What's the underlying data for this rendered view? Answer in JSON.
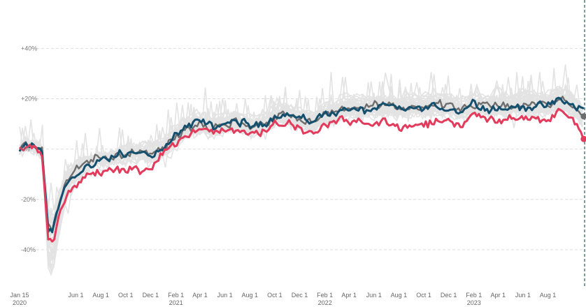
{
  "chart_data": {
    "type": "line",
    "title": "",
    "xlabel": "",
    "ylabel": "",
    "y_unit": "percent change",
    "ylim": [
      -55,
      57
    ],
    "grid": "horizontal dashed",
    "x_domain": [
      "2020-01-15",
      "2023-10-30"
    ],
    "xticks": [
      {
        "date": "2020-01-15",
        "label": "Jan 15",
        "sub": "2020"
      },
      {
        "date": "2020-06-01",
        "label": "Jun 1",
        "sub": ""
      },
      {
        "date": "2020-08-01",
        "label": "Aug 1",
        "sub": ""
      },
      {
        "date": "2020-10-01",
        "label": "Oct 1",
        "sub": ""
      },
      {
        "date": "2020-12-01",
        "label": "Dec 1",
        "sub": ""
      },
      {
        "date": "2021-02-01",
        "label": "Feb 1",
        "sub": "2021"
      },
      {
        "date": "2021-04-01",
        "label": "Apr 1",
        "sub": ""
      },
      {
        "date": "2021-06-01",
        "label": "Jun 1",
        "sub": ""
      },
      {
        "date": "2021-08-01",
        "label": "Aug 1",
        "sub": ""
      },
      {
        "date": "2021-10-01",
        "label": "Oct 1",
        "sub": ""
      },
      {
        "date": "2021-12-01",
        "label": "Dec 1",
        "sub": ""
      },
      {
        "date": "2022-02-01",
        "label": "Feb 1",
        "sub": "2022"
      },
      {
        "date": "2022-04-01",
        "label": "Apr 1",
        "sub": ""
      },
      {
        "date": "2022-06-01",
        "label": "Jun 1",
        "sub": ""
      },
      {
        "date": "2022-08-01",
        "label": "Aug 1",
        "sub": ""
      },
      {
        "date": "2022-10-01",
        "label": "Oct 1",
        "sub": ""
      },
      {
        "date": "2022-12-01",
        "label": "Dec 1",
        "sub": ""
      },
      {
        "date": "2023-02-01",
        "label": "Feb 1",
        "sub": "2023"
      },
      {
        "date": "2023-04-01",
        "label": "Apr 1",
        "sub": ""
      },
      {
        "date": "2023-06-01",
        "label": "Jun 1",
        "sub": ""
      },
      {
        "date": "2023-08-01",
        "label": "Aug 1",
        "sub": ""
      }
    ],
    "yticks": [
      {
        "value": 40,
        "label": "+40%"
      },
      {
        "value": 20,
        "label": "+20%"
      },
      {
        "value": 0,
        "label": "0%"
      },
      {
        "value": -20,
        "label": "-20%"
      },
      {
        "value": -40,
        "label": "-40%"
      }
    ],
    "marker_line_date": "2023-10-30",
    "colors": {
      "background_series": "#e3e3e3",
      "gray_series": "#6e6e6e",
      "blue_series": "#14506e",
      "red_series": "#e23b5c",
      "grid": "#dddddd",
      "marker_line": "#3a6470"
    },
    "series": [
      {
        "role": "gray",
        "points": [
          [
            "2020-01-15",
            0
          ],
          [
            "2020-02-01",
            2
          ],
          [
            "2020-02-20",
            1
          ],
          [
            "2020-03-10",
            0
          ],
          [
            "2020-03-25",
            -30
          ],
          [
            "2020-04-05",
            -33
          ],
          [
            "2020-04-20",
            -22
          ],
          [
            "2020-05-10",
            -12
          ],
          [
            "2020-06-01",
            -8
          ],
          [
            "2020-07-01",
            -5
          ],
          [
            "2020-08-01",
            -4
          ],
          [
            "2020-09-01",
            -3
          ],
          [
            "2020-10-01",
            -2
          ],
          [
            "2020-11-01",
            -1
          ],
          [
            "2020-12-01",
            -2
          ],
          [
            "2021-01-01",
            0
          ],
          [
            "2021-02-01",
            5
          ],
          [
            "2021-03-01",
            9
          ],
          [
            "2021-04-01",
            10
          ],
          [
            "2021-05-01",
            9
          ],
          [
            "2021-06-01",
            10
          ],
          [
            "2021-07-01",
            11
          ],
          [
            "2021-08-01",
            9
          ],
          [
            "2021-09-01",
            10
          ],
          [
            "2021-10-01",
            13
          ],
          [
            "2021-11-01",
            14
          ],
          [
            "2021-12-01",
            12
          ],
          [
            "2022-01-01",
            11
          ],
          [
            "2022-02-01",
            14
          ],
          [
            "2022-03-01",
            15
          ],
          [
            "2022-04-01",
            17
          ],
          [
            "2022-05-01",
            16
          ],
          [
            "2022-06-01",
            17
          ],
          [
            "2022-07-01",
            17
          ],
          [
            "2022-08-01",
            16
          ],
          [
            "2022-09-01",
            17
          ],
          [
            "2022-10-01",
            17
          ],
          [
            "2022-11-01",
            18
          ],
          [
            "2022-12-01",
            17
          ],
          [
            "2023-01-01",
            16
          ],
          [
            "2023-02-01",
            18
          ],
          [
            "2023-03-01",
            17
          ],
          [
            "2023-04-01",
            17
          ],
          [
            "2023-05-01",
            17
          ],
          [
            "2023-06-01",
            18
          ],
          [
            "2023-07-01",
            18
          ],
          [
            "2023-08-01",
            18
          ],
          [
            "2023-09-01",
            20
          ],
          [
            "2023-10-01",
            17
          ],
          [
            "2023-10-28",
            13
          ]
        ]
      },
      {
        "role": "blue",
        "points": [
          [
            "2020-01-15",
            0
          ],
          [
            "2020-02-01",
            2
          ],
          [
            "2020-02-20",
            0
          ],
          [
            "2020-03-10",
            0
          ],
          [
            "2020-03-25",
            -32
          ],
          [
            "2020-04-05",
            -33
          ],
          [
            "2020-04-20",
            -22
          ],
          [
            "2020-05-10",
            -14
          ],
          [
            "2020-06-01",
            -10
          ],
          [
            "2020-07-01",
            -6
          ],
          [
            "2020-08-01",
            -4
          ],
          [
            "2020-09-01",
            -3
          ],
          [
            "2020-10-01",
            -2
          ],
          [
            "2020-11-01",
            -1
          ],
          [
            "2020-12-01",
            -2
          ],
          [
            "2021-01-01",
            0
          ],
          [
            "2021-02-01",
            6
          ],
          [
            "2021-03-01",
            9
          ],
          [
            "2021-04-01",
            11
          ],
          [
            "2021-05-01",
            9
          ],
          [
            "2021-06-01",
            10
          ],
          [
            "2021-07-01",
            11
          ],
          [
            "2021-08-01",
            9
          ],
          [
            "2021-09-01",
            10
          ],
          [
            "2021-10-01",
            13
          ],
          [
            "2021-11-01",
            14
          ],
          [
            "2021-12-01",
            12
          ],
          [
            "2022-01-01",
            11
          ],
          [
            "2022-02-01",
            14
          ],
          [
            "2022-03-01",
            15
          ],
          [
            "2022-04-01",
            16
          ],
          [
            "2022-05-01",
            15
          ],
          [
            "2022-06-01",
            16
          ],
          [
            "2022-07-01",
            17
          ],
          [
            "2022-08-01",
            16
          ],
          [
            "2022-09-01",
            16
          ],
          [
            "2022-10-01",
            16
          ],
          [
            "2022-11-01",
            17
          ],
          [
            "2022-12-01",
            16
          ],
          [
            "2023-01-01",
            15
          ],
          [
            "2023-02-01",
            19
          ],
          [
            "2023-03-01",
            16
          ],
          [
            "2023-04-01",
            16
          ],
          [
            "2023-05-01",
            16
          ],
          [
            "2023-06-01",
            17
          ],
          [
            "2023-07-01",
            17
          ],
          [
            "2023-08-01",
            17
          ],
          [
            "2023-09-01",
            20
          ],
          [
            "2023-10-01",
            17
          ],
          [
            "2023-10-28",
            16
          ]
        ]
      },
      {
        "role": "red",
        "points": [
          [
            "2020-01-15",
            0
          ],
          [
            "2020-02-01",
            1
          ],
          [
            "2020-02-20",
            0
          ],
          [
            "2020-03-10",
            -2
          ],
          [
            "2020-03-25",
            -36
          ],
          [
            "2020-04-05",
            -38
          ],
          [
            "2020-04-20",
            -28
          ],
          [
            "2020-05-10",
            -18
          ],
          [
            "2020-06-01",
            -14
          ],
          [
            "2020-07-01",
            -10
          ],
          [
            "2020-08-01",
            -9
          ],
          [
            "2020-09-01",
            -8
          ],
          [
            "2020-10-01",
            -8
          ],
          [
            "2020-11-01",
            -8
          ],
          [
            "2020-12-01",
            -9
          ],
          [
            "2021-01-01",
            -2
          ],
          [
            "2021-02-01",
            3
          ],
          [
            "2021-03-01",
            6
          ],
          [
            "2021-04-01",
            8
          ],
          [
            "2021-05-01",
            7
          ],
          [
            "2021-06-01",
            7
          ],
          [
            "2021-07-01",
            8
          ],
          [
            "2021-08-01",
            6
          ],
          [
            "2021-09-01",
            7
          ],
          [
            "2021-10-01",
            10
          ],
          [
            "2021-11-01",
            10
          ],
          [
            "2021-12-01",
            8
          ],
          [
            "2022-01-01",
            6
          ],
          [
            "2022-02-01",
            10
          ],
          [
            "2022-03-01",
            11
          ],
          [
            "2022-04-01",
            12
          ],
          [
            "2022-05-01",
            10
          ],
          [
            "2022-06-01",
            10
          ],
          [
            "2022-07-01",
            11
          ],
          [
            "2022-08-01",
            8
          ],
          [
            "2022-09-01",
            9
          ],
          [
            "2022-10-01",
            10
          ],
          [
            "2022-11-01",
            11
          ],
          [
            "2022-12-01",
            10
          ],
          [
            "2023-01-01",
            9
          ],
          [
            "2023-02-01",
            15
          ],
          [
            "2023-03-01",
            12
          ],
          [
            "2023-04-01",
            11
          ],
          [
            "2023-05-01",
            12
          ],
          [
            "2023-06-01",
            12
          ],
          [
            "2023-07-01",
            13
          ],
          [
            "2023-08-01",
            12
          ],
          [
            "2023-09-01",
            15
          ],
          [
            "2023-10-01",
            12
          ],
          [
            "2023-10-28",
            4
          ]
        ]
      }
    ],
    "background_series_count": 40
  }
}
